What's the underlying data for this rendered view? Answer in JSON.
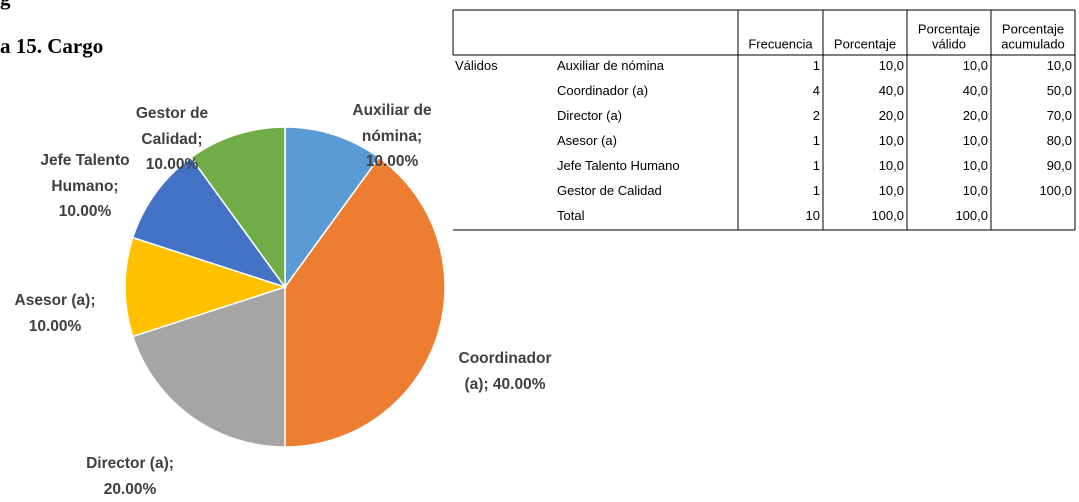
{
  "document": {
    "fragment": "g",
    "heading": "a 15. Cargo"
  },
  "chart_data": {
    "type": "pie",
    "values": [
      10,
      40,
      20,
      10,
      10,
      10
    ],
    "value_labels": [
      "Auxiliar de\nnómina;\n10.00%",
      "Coordinador\n(a); 40.00%",
      "Director (a);\n20.00%",
      "Asesor (a);\n10.00%",
      "Jefe Talento\nHumano;\n10.00%",
      "Gestor de\nCalidad;\n10.00%"
    ],
    "colors": [
      "#5b9bd5",
      "#ed7d31",
      "#a5a5a5",
      "#ffc000",
      "#4472c4",
      "#70ad47"
    ]
  },
  "table": {
    "header": [
      [
        "Frecuencia"
      ],
      [
        "Porcentaje"
      ],
      [
        "Porcentaje",
        "válido"
      ],
      [
        "Porcentaje",
        "acumulado"
      ]
    ],
    "group": "Válidos",
    "rows": [
      [
        "Auxiliar de nómina",
        "1",
        "10,0",
        "10,0",
        "10,0"
      ],
      [
        "Coordinador (a)",
        "4",
        "40,0",
        "40,0",
        "50,0"
      ],
      [
        "Director (a)",
        "2",
        "20,0",
        "20,0",
        "70,0"
      ],
      [
        "Asesor (a)",
        "1",
        "10,0",
        "10,0",
        "80,0"
      ],
      [
        "Jefe Talento Humano",
        "1",
        "10,0",
        "10,0",
        "90,0"
      ],
      [
        "Gestor de Calidad",
        "1",
        "10,0",
        "10,0",
        "100,0"
      ],
      [
        "Total",
        "10",
        "100,0",
        "100,0"
      ]
    ]
  }
}
